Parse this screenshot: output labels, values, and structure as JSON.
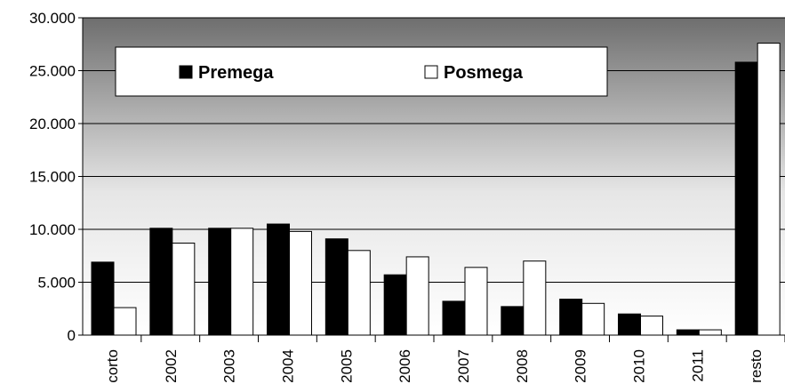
{
  "chart_data": {
    "type": "bar",
    "categories": [
      "corto",
      "2002",
      "2003",
      "2004",
      "2005",
      "2006",
      "2007",
      "2008",
      "2009",
      "2010",
      "2011",
      "resto"
    ],
    "series": [
      {
        "name": "Premega",
        "color": "#000000",
        "values": [
          6900,
          10100,
          10100,
          10500,
          9100,
          5700,
          3200,
          2700,
          3400,
          2000,
          500,
          25800
        ]
      },
      {
        "name": "Posmega",
        "color": "#ffffff",
        "values": [
          2600,
          8700,
          10100,
          9800,
          8000,
          7400,
          6400,
          7000,
          3000,
          1800,
          500,
          27600
        ]
      }
    ],
    "ylim": [
      0,
      30000
    ],
    "yticks": [
      0,
      {
        "value": 5000,
        "label": "5.000"
      },
      {
        "value": 10000,
        "label": "10.000"
      },
      {
        "value": 15000,
        "label": "15.000"
      },
      {
        "value": 20000,
        "label": "20.000"
      },
      {
        "value": 25000,
        "label": "25.000"
      },
      {
        "value": 30000,
        "label": "30.000"
      }
    ],
    "grid": true
  }
}
